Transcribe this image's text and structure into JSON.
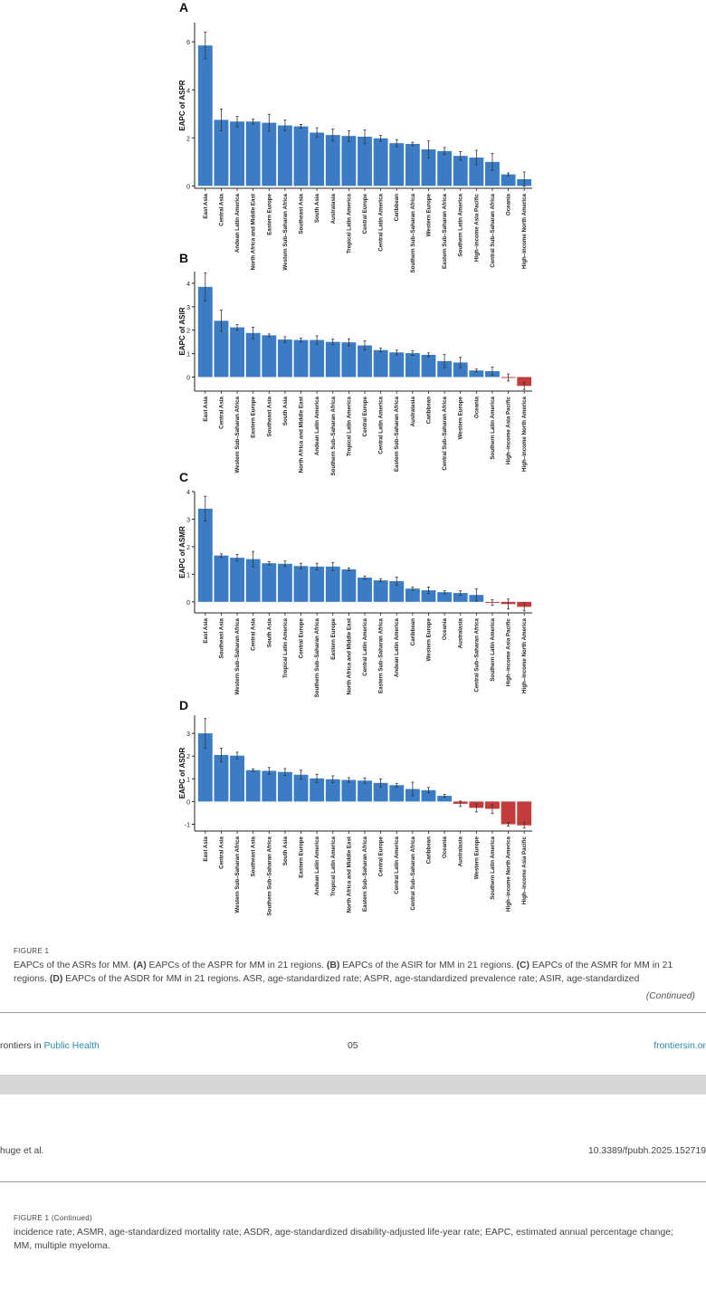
{
  "chart_data": [
    {
      "panel": "A",
      "type": "bar",
      "ylabel": "EAPC of ASPR",
      "yticks": [
        0,
        2,
        4,
        6
      ],
      "ylim": [
        -0.1,
        6.8
      ],
      "categories": [
        "East Asia",
        "Central Asia",
        "Andean Latin America",
        "North Africa and Middle East",
        "Eastern Europe",
        "Western Sub–Saharan Africa",
        "Southeast Asia",
        "South Asia",
        "Australasia",
        "Tropical Latin America",
        "Central Europe",
        "Central Latin America",
        "Caribbean",
        "Southern Sub–Saharan Africa",
        "Western Europe",
        "Eastern Sub–Saharan Africa",
        "Southern Latin America",
        "High–income Asia Pacific",
        "Central Sub–Saharan Africa",
        "Oceania",
        "High–income North America"
      ],
      "values": [
        5.85,
        2.75,
        2.68,
        2.68,
        2.63,
        2.52,
        2.48,
        2.22,
        2.12,
        2.08,
        2.05,
        1.98,
        1.78,
        1.75,
        1.52,
        1.45,
        1.25,
        1.18,
        1.0,
        0.48,
        0.28
      ],
      "errors": [
        0.55,
        0.45,
        0.22,
        0.1,
        0.35,
        0.22,
        0.08,
        0.2,
        0.25,
        0.22,
        0.28,
        0.12,
        0.15,
        0.07,
        0.35,
        0.15,
        0.18,
        0.3,
        0.35,
        0.06,
        0.3
      ]
    },
    {
      "panel": "B",
      "type": "bar",
      "ylabel": "EAPC of ASIR",
      "yticks": [
        0,
        1,
        2,
        3,
        4
      ],
      "ylim": [
        -0.6,
        4.5
      ],
      "categories": [
        "East Asia",
        "Central Asia",
        "Western Sub–Saharan Africa",
        "Eastern Europe",
        "Southeast Asia",
        "South Asia",
        "North Africa and Middle East",
        "Andean Latin America",
        "Southern Sub–Saharan Africa",
        "Tropical Latin America",
        "Central Europe",
        "Central Latin America",
        "Eastern Sub–Saharan Africa",
        "Australasia",
        "Caribbean",
        "Central Sub–Saharan Africa",
        "Western Europe",
        "Oceania",
        "Southern Latin America",
        "High–income Asia Pacific",
        "High–income North America"
      ],
      "values": [
        3.85,
        2.4,
        2.12,
        1.88,
        1.78,
        1.6,
        1.58,
        1.58,
        1.5,
        1.48,
        1.35,
        1.15,
        1.05,
        1.02,
        0.95,
        0.68,
        0.62,
        0.28,
        0.25,
        -0.02,
        -0.38
      ],
      "errors": [
        0.6,
        0.45,
        0.12,
        0.25,
        0.06,
        0.12,
        0.08,
        0.18,
        0.12,
        0.15,
        0.2,
        0.08,
        0.1,
        0.1,
        0.08,
        0.28,
        0.22,
        0.06,
        0.18,
        0.15,
        0.15
      ]
    },
    {
      "panel": "C",
      "type": "bar",
      "ylabel": "EAPC of ASMR",
      "yticks": [
        0,
        1,
        2,
        3,
        4
      ],
      "ylim": [
        -0.4,
        4.0
      ],
      "categories": [
        "East Asia",
        "Southeast Asia",
        "Western Sub–Saharan Africa",
        "Central Asia",
        "South Asia",
        "Tropical Latin America",
        "Central Europe",
        "Southern Sub–Saharan Africa",
        "Eastern Europe",
        "North Africa and Middle East",
        "Central Latin America",
        "Eastern Sub–Saharan Africa",
        "Andean Latin America",
        "Caribbean",
        "Western Europe",
        "Oceania",
        "Australasia",
        "Central Sub–Saharan Africa",
        "Southern Latin America",
        "High–income Asia Pacific",
        "High–income North America"
      ],
      "values": [
        3.38,
        1.68,
        1.6,
        1.55,
        1.4,
        1.38,
        1.3,
        1.28,
        1.28,
        1.18,
        0.88,
        0.78,
        0.75,
        0.48,
        0.42,
        0.35,
        0.32,
        0.25,
        -0.02,
        -0.08,
        -0.18
      ],
      "errors": [
        0.45,
        0.06,
        0.12,
        0.28,
        0.06,
        0.1,
        0.1,
        0.12,
        0.15,
        0.05,
        0.06,
        0.06,
        0.15,
        0.06,
        0.12,
        0.06,
        0.08,
        0.22,
        0.1,
        0.18,
        0.15
      ]
    },
    {
      "panel": "D",
      "type": "bar",
      "ylabel": "EAPC of ASDR",
      "yticks": [
        -1,
        0,
        1,
        2,
        3
      ],
      "ylim": [
        -1.3,
        3.8
      ],
      "categories": [
        "East Asia",
        "Central Asia",
        "Western Sub–Saharan Africa",
        "Southeast Asia",
        "Southern Sub–Saharan Africa",
        "South Asia",
        "Eastern Europe",
        "Andean Latin America",
        "Tropical Latin America",
        "North Africa and Middle East",
        "Eastern Sub–Saharan Africa",
        "Central Europe",
        "Central Latin America",
        "Central Sub–Saharan Africa",
        "Caribbean",
        "Oceania",
        "Australasia",
        "Western Europe",
        "Southern Latin America",
        "High–income North America",
        "High–income Asia Pacific"
      ],
      "values": [
        3.0,
        2.05,
        2.02,
        1.38,
        1.35,
        1.3,
        1.18,
        1.02,
        0.98,
        0.95,
        0.92,
        0.82,
        0.72,
        0.55,
        0.5,
        0.25,
        -0.1,
        -0.28,
        -0.32,
        -1.0,
        -1.05
      ],
      "errors": [
        0.65,
        0.3,
        0.15,
        0.06,
        0.15,
        0.15,
        0.2,
        0.18,
        0.15,
        0.1,
        0.12,
        0.18,
        0.08,
        0.3,
        0.12,
        0.06,
        0.12,
        0.18,
        0.2,
        0.08,
        0.12
      ]
    }
  ],
  "colors": {
    "positive": "#3b7cc4",
    "negative": "#c23c3c",
    "errorbar": "#333333"
  },
  "caption": {
    "label": "FIGURE 1",
    "text_lead": "EAPCs of the ASRs for MM. ",
    "a_tag": "(A)",
    "a_text": " EAPCs of the ASPR for MM in 21 regions. ",
    "b_tag": "(B)",
    "b_text": " EAPCs of the ASIR for MM in 21 regions. ",
    "c_tag": "(C)",
    "c_text": " EAPCs of the ASMR for MM in 21 regions. ",
    "d_tag": "(D)",
    "d_text": " EAPCs of the ASDR for MM in 21 regions. ASR, age-standardized rate; ASPR, age-standardized prevalence rate; ASIR, age-standardized",
    "continued": "(Continued)"
  },
  "footer": {
    "prefix": "rontiers in ",
    "journal": "Public Health",
    "page": "05",
    "site": "frontiersin.or"
  },
  "next_header": {
    "authors": "huge et al.",
    "doi": "10.3389/fpubh.2025.152719"
  },
  "caption_cont": {
    "label": "FIGURE 1 (Continued)",
    "text": "incidence rate; ASMR, age-standardized mortality rate; ASDR, age-standardized disability-adjusted life-year rate; EAPC, estimated annual percentage change; MM, multiple myeloma."
  }
}
